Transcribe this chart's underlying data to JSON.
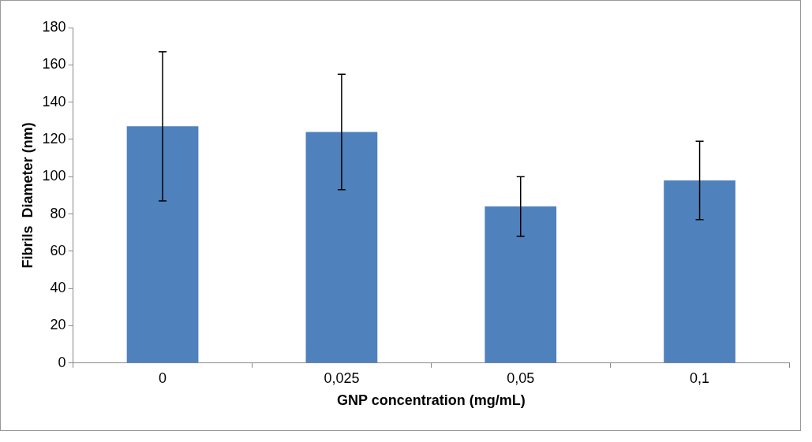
{
  "chart_data": {
    "type": "bar",
    "xlabel": "GNP concentration (mg/mL)",
    "ylabel": "Fibrils  Diameter (nm)",
    "categories": [
      "0",
      "0,025",
      "0,05",
      "0,1"
    ],
    "values": [
      127,
      124,
      84,
      98
    ],
    "errors": [
      [
        87,
        167
      ],
      [
        93,
        155
      ],
      [
        68,
        100
      ],
      [
        77,
        119
      ]
    ],
    "color": "#4f81bd",
    "ylim": [
      0,
      180
    ],
    "yticks": [
      0,
      20,
      40,
      60,
      80,
      100,
      120,
      140,
      160,
      180
    ],
    "grid": false,
    "legend": false
  }
}
